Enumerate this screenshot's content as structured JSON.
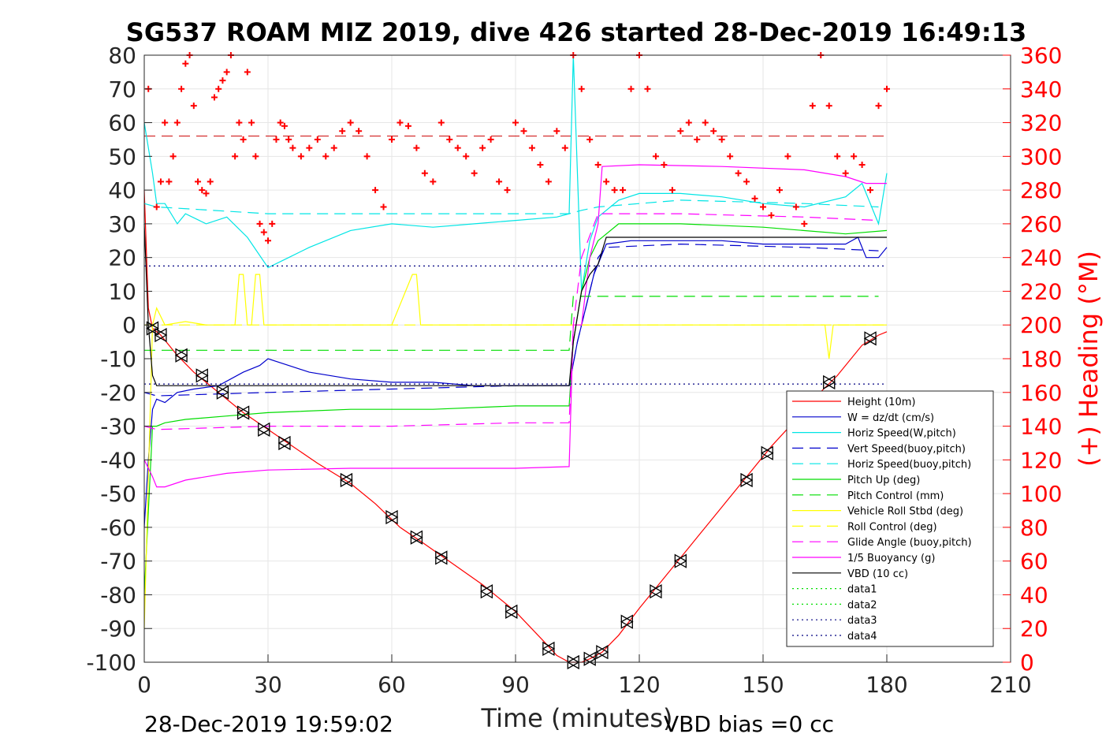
{
  "chart_data": {
    "type": "line",
    "title": "SG537 ROAM MIZ 2019, dive 426 started 28-Dec-2019 16:49:13",
    "xlabel": "Time (minutes)",
    "ylabel": "",
    "ylabel_right": "(+) Heading (°M)",
    "footer_left": "28-Dec-2019 19:59:02",
    "footer_right": "VBD bias =0 cc",
    "xlim": [
      0,
      210
    ],
    "ylim": [
      -100,
      80
    ],
    "ylim_right": [
      0,
      360
    ],
    "xticks": [
      "0",
      "30",
      "60",
      "90",
      "120",
      "150",
      "180",
      "210"
    ],
    "yticks": [
      "80",
      "70",
      "60",
      "50",
      "40",
      "30",
      "20",
      "10",
      "0",
      "-10",
      "-20",
      "-30",
      "-40",
      "-50",
      "-60",
      "-70",
      "-80",
      "-90",
      "-100"
    ],
    "yticks_right": [
      "360",
      "340",
      "320",
      "300",
      "280",
      "260",
      "240",
      "220",
      "200",
      "180",
      "160",
      "140",
      "120",
      "100",
      "80",
      "60",
      "40",
      "20",
      "0"
    ],
    "grid": true,
    "legend_position": "bottom-right",
    "series": [
      {
        "name": "Height (10m)",
        "color": "#ff0000",
        "style": "solid",
        "x": [
          0,
          1,
          2,
          4,
          8,
          12,
          18,
          24,
          30,
          36,
          42,
          50,
          56,
          62,
          68,
          75,
          82,
          90,
          97,
          100,
          103,
          106,
          108,
          111,
          115,
          120,
          126,
          132,
          140,
          146,
          152,
          158,
          163,
          168,
          174,
          178,
          180
        ],
        "y": [
          40,
          5,
          -1,
          -3,
          -9,
          -14,
          -20,
          -26,
          -31,
          -36,
          -41,
          -47,
          -53,
          -60,
          -65,
          -71,
          -77,
          -85,
          -94,
          -98,
          -100,
          -100,
          -99,
          -97,
          -92,
          -84,
          -75,
          -66,
          -54,
          -45,
          -36,
          -28,
          -21,
          -15,
          -6,
          -3,
          -2
        ]
      },
      {
        "name": "W = dz/dt (cm/s)",
        "color": "#0000cc",
        "style": "solid",
        "x": [
          0,
          1,
          2,
          3,
          5,
          8,
          12,
          18,
          24,
          28,
          30,
          35,
          40,
          50,
          60,
          70,
          80,
          90,
          100,
          103,
          105,
          107,
          109,
          112,
          118,
          130,
          140,
          150,
          160,
          170,
          173,
          175,
          178,
          180
        ],
        "y": [
          -60,
          -40,
          -25,
          -22,
          -23,
          -20,
          -19,
          -18,
          -14,
          -12,
          -10,
          -12,
          -14,
          -16,
          -17,
          -17,
          -18,
          -18,
          -18,
          -18,
          -5,
          5,
          15,
          24,
          25,
          25,
          25,
          24,
          24,
          24,
          26,
          20,
          20,
          23
        ]
      },
      {
        "name": "Horiz Speed(W,pitch)",
        "color": "#00e5e5",
        "style": "solid",
        "x": [
          0,
          2,
          3,
          5,
          8,
          10,
          15,
          20,
          25,
          30,
          35,
          40,
          50,
          60,
          70,
          80,
          90,
          100,
          103,
          104,
          106,
          108,
          110,
          115,
          120,
          130,
          140,
          150,
          160,
          170,
          174,
          178,
          180
        ],
        "y": [
          60,
          45,
          36,
          36,
          30,
          33,
          30,
          32,
          26,
          17,
          20,
          23,
          28,
          30,
          29,
          30,
          31,
          32,
          33,
          80,
          10,
          25,
          32,
          37,
          39,
          39,
          38,
          36,
          35,
          38,
          42,
          30,
          45
        ]
      },
      {
        "name": "Vert Speed(buoy,pitch)",
        "color": "#0000cc",
        "style": "dashed",
        "x": [
          0,
          3,
          30,
          60,
          90,
          103,
          105,
          108,
          110,
          112,
          130,
          160,
          178
        ],
        "y": [
          -20,
          -21,
          -20,
          -19,
          -18,
          -18,
          -5,
          10,
          20,
          23,
          24,
          23,
          22
        ]
      },
      {
        "name": "Horiz Speed(buoy,pitch)",
        "color": "#00e5e5",
        "style": "dashed",
        "x": [
          0,
          3,
          30,
          60,
          90,
          103,
          106,
          110,
          130,
          160,
          178
        ],
        "y": [
          36,
          35,
          33,
          33,
          33,
          33,
          34,
          35,
          37,
          36,
          35
        ]
      },
      {
        "name": "Pitch Up (deg)",
        "color": "#00dd00",
        "style": "solid",
        "x": [
          0,
          2,
          3,
          5,
          10,
          20,
          30,
          50,
          70,
          90,
          103,
          104,
          106,
          108,
          110,
          115,
          130,
          150,
          170,
          180
        ],
        "y": [
          -80,
          -30,
          -30,
          -29,
          -28,
          -27,
          -26,
          -25,
          -25,
          -24,
          -24,
          -5,
          10,
          20,
          25,
          30,
          30,
          29,
          27,
          28
        ]
      },
      {
        "name": "Pitch Control (mm)",
        "color": "#00dd00",
        "style": "dashed",
        "x": [
          0,
          103,
          104,
          178
        ],
        "y": [
          -7.5,
          -7.5,
          8.5,
          8.5
        ]
      },
      {
        "name": "Vehicle Roll Stbd (deg)",
        "color": "#ffff00",
        "style": "solid",
        "x": [
          0,
          2,
          3,
          5,
          10,
          15,
          20,
          22,
          23,
          24,
          25,
          26,
          27,
          28,
          29,
          30,
          40,
          60,
          65,
          66,
          67,
          80,
          100,
          103,
          106,
          110,
          120,
          140,
          150,
          160,
          165,
          166,
          167,
          175,
          180
        ],
        "y": [
          -90,
          0,
          5,
          0,
          1,
          0,
          0,
          0,
          15,
          15,
          0,
          0,
          15,
          15,
          0,
          0,
          0,
          0,
          15,
          15,
          0,
          0,
          0,
          0,
          0,
          0,
          0,
          0,
          0,
          0,
          0,
          -10,
          0,
          0,
          0
        ]
      },
      {
        "name": "Roll Control (deg)",
        "color": "#ffff00",
        "style": "dashed",
        "x": [
          0,
          180
        ],
        "y": [
          0,
          0
        ]
      },
      {
        "name": "Glide Angle (buoy,pitch)",
        "color": "#ff00ff",
        "style": "dashed",
        "x": [
          0,
          3,
          30,
          60,
          90,
          103,
          104,
          106,
          110,
          130,
          160,
          178
        ],
        "y": [
          -30,
          -31,
          -30,
          -30,
          -29,
          -29,
          0,
          20,
          33,
          33,
          32,
          31
        ]
      },
      {
        "name": "1/5 Buoyancy (g)",
        "color": "#ff00ff",
        "style": "solid",
        "x": [
          0,
          2,
          3,
          5,
          10,
          20,
          30,
          50,
          70,
          90,
          103,
          104,
          106,
          108,
          110,
          111,
          120,
          140,
          160,
          170,
          175,
          180
        ],
        "y": [
          -40,
          -45,
          -48,
          -48,
          -46,
          -44,
          -43,
          -42.5,
          -42.5,
          -42.5,
          -42,
          0,
          0,
          20,
          30,
          47,
          47.5,
          47,
          46,
          44,
          42,
          42
        ]
      },
      {
        "name": "VBD (10 cc)",
        "color": "#000000",
        "style": "solid",
        "x": [
          0,
          1,
          2,
          3,
          103,
          104,
          106,
          108,
          110,
          112,
          180
        ],
        "y": [
          30,
          0,
          -15,
          -18,
          -18,
          -5,
          10,
          15,
          18,
          26,
          26
        ]
      },
      {
        "name": "data1",
        "color": "#00dd00",
        "style": "dotted",
        "x": [],
        "y": []
      },
      {
        "name": "data2",
        "color": "#00dd00",
        "style": "dotted",
        "x": [],
        "y": []
      },
      {
        "name": "data3",
        "color": "#000080",
        "style": "dotted",
        "x": [
          0,
          180
        ],
        "y": [
          17.5,
          17.5
        ]
      },
      {
        "name": "data4",
        "color": "#000080",
        "style": "dotted",
        "x": [
          0,
          180
        ],
        "y": [
          -17.5,
          -17.5
        ]
      }
    ],
    "heading": {
      "color": "#ff0000",
      "marker": "+",
      "x": [
        1,
        3,
        4,
        5,
        6,
        7,
        8,
        9,
        10,
        11,
        12,
        13,
        14,
        15,
        16,
        17,
        18,
        19,
        20,
        21,
        22,
        23,
        24,
        25,
        26,
        27,
        28,
        29,
        30,
        31,
        32,
        33,
        34,
        35,
        36,
        38,
        40,
        42,
        44,
        46,
        48,
        50,
        52,
        54,
        56,
        58,
        60,
        62,
        64,
        66,
        68,
        70,
        72,
        74,
        76,
        78,
        80,
        82,
        84,
        86,
        88,
        90,
        92,
        94,
        96,
        98,
        100,
        102,
        104,
        106,
        108,
        110,
        112,
        114,
        116,
        118,
        120,
        122,
        124,
        126,
        128,
        130,
        132,
        134,
        136,
        138,
        140,
        142,
        144,
        146,
        148,
        150,
        152,
        154,
        156,
        158,
        160,
        162,
        164,
        166,
        168,
        170,
        172,
        174,
        176,
        178,
        180
      ],
      "y": [
        340,
        270,
        285,
        320,
        285,
        300,
        320,
        340,
        355,
        360,
        330,
        285,
        280,
        278,
        285,
        335,
        340,
        345,
        350,
        360,
        300,
        320,
        310,
        350,
        320,
        300,
        260,
        255,
        250,
        260,
        310,
        320,
        318,
        310,
        305,
        300,
        305,
        310,
        300,
        305,
        315,
        320,
        315,
        300,
        280,
        270,
        310,
        320,
        318,
        305,
        290,
        285,
        320,
        310,
        305,
        300,
        290,
        305,
        310,
        285,
        280,
        320,
        315,
        305,
        295,
        285,
        315,
        305,
        360,
        340,
        310,
        295,
        285,
        280,
        280,
        340,
        360,
        340,
        300,
        295,
        280,
        315,
        320,
        310,
        320,
        315,
        310,
        300,
        290,
        285,
        275,
        270,
        265,
        280,
        300,
        270,
        260,
        330,
        360,
        330,
        300,
        290,
        300,
        295,
        280,
        330,
        340
      ]
    },
    "heading_ref": 312,
    "markers_right": {
      "x": [
        2,
        4,
        9,
        14,
        19,
        24,
        29,
        34,
        49,
        60,
        66,
        72,
        83,
        89,
        98,
        104,
        108,
        111,
        117,
        124,
        130,
        146,
        151,
        166,
        176
      ],
      "y": [
        -1,
        -3,
        -9,
        -15,
        -20,
        -26,
        -31,
        -35,
        -46,
        -57,
        -63,
        -69,
        -79,
        -85,
        -96,
        -100,
        -99,
        -97,
        -88,
        -79,
        -70,
        -46,
        -38,
        -17,
        -4
      ]
    }
  }
}
